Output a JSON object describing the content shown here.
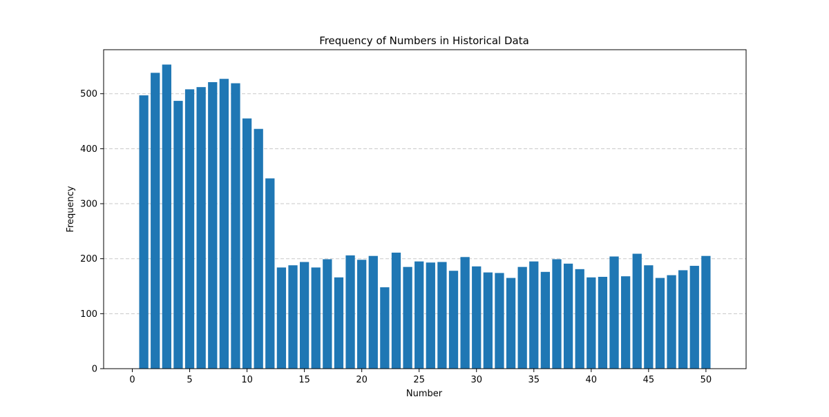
{
  "chart_data": {
    "type": "bar",
    "title": "Frequency of Numbers in Historical Data",
    "xlabel": "Number",
    "ylabel": "Frequency",
    "x": [
      1,
      2,
      3,
      4,
      5,
      6,
      7,
      8,
      9,
      10,
      11,
      12,
      13,
      14,
      15,
      16,
      17,
      18,
      19,
      20,
      21,
      22,
      23,
      24,
      25,
      26,
      27,
      28,
      29,
      30,
      31,
      32,
      33,
      34,
      35,
      36,
      37,
      38,
      39,
      40,
      41,
      42,
      43,
      44,
      45,
      46,
      47,
      48,
      49,
      50
    ],
    "values": [
      497,
      538,
      553,
      487,
      508,
      512,
      521,
      527,
      519,
      455,
      436,
      346,
      184,
      188,
      194,
      184,
      199,
      166,
      206,
      198,
      205,
      148,
      211,
      185,
      195,
      193,
      194,
      178,
      203,
      186,
      175,
      174,
      165,
      185,
      195,
      176,
      199,
      191,
      181,
      166,
      167,
      204,
      168,
      209,
      188,
      165,
      170,
      179,
      187,
      205
    ],
    "xlim": [
      -2.5,
      53.5
    ],
    "ylim": [
      0,
      580
    ],
    "xticks": [
      0,
      5,
      10,
      15,
      20,
      25,
      30,
      35,
      40,
      45,
      50
    ],
    "yticks": [
      0,
      100,
      200,
      300,
      400,
      500
    ],
    "grid": "y-dashed",
    "bar_color": "#1f77b4",
    "grid_color": "#c8c8c8"
  }
}
